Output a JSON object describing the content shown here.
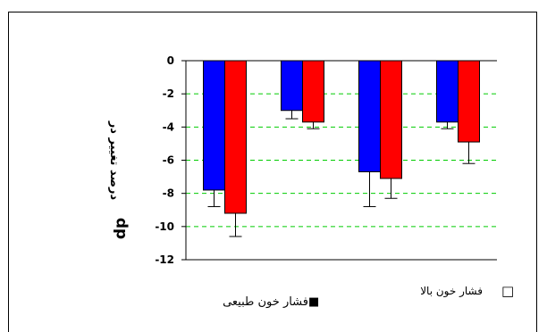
{
  "chart_data": {
    "type": "bar",
    "categories": [
      "",
      "",
      "",
      ""
    ],
    "series": [
      {
        "name": "",
        "color": "#0000ff",
        "values": [
          -7.8,
          -3.0,
          -6.7,
          -3.7
        ],
        "errors": [
          1.0,
          0.5,
          2.1,
          0.4
        ]
      },
      {
        "name": "",
        "color": "#ff0000",
        "values": [
          -9.2,
          -3.7,
          -7.1,
          -4.9
        ],
        "errors": [
          1.4,
          0.4,
          1.2,
          1.3
        ]
      }
    ],
    "yticks": [
      0,
      -2,
      -4,
      -6,
      -8,
      -10,
      -12
    ],
    "ytick_labels": [
      "0",
      "-2",
      "-4",
      "-6",
      "-8",
      "-10",
      "-12"
    ],
    "ylim": [
      -12,
      0
    ],
    "grid": "dashed horizontal",
    "grid_color": "#00cc00",
    "ylabel_main": "درصد تغییر در",
    "ylabel_sub": "dp",
    "legend": [
      {
        "label": "فشار خون بالا",
        "marker": "□"
      },
      {
        "label": "فشار خون طبیعی",
        "marker": "■"
      }
    ]
  }
}
